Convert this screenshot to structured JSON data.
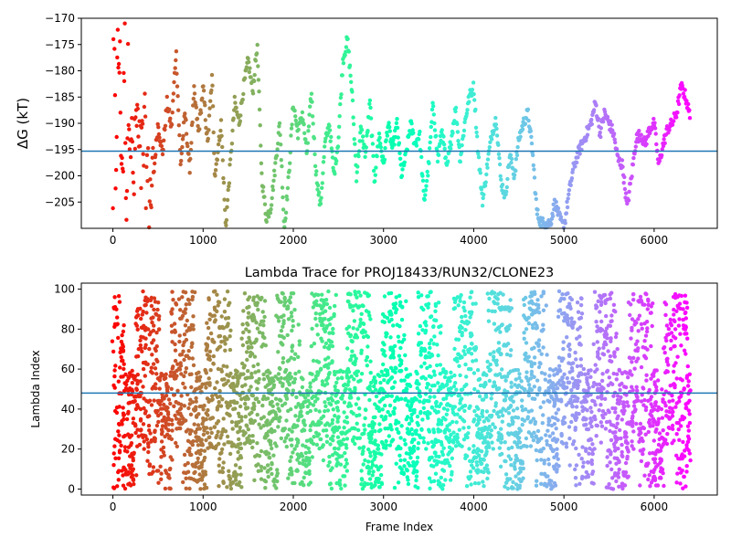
{
  "chart_data": [
    {
      "type": "scatter",
      "title": "",
      "xlabel": "",
      "ylabel": "ΔG (kT)",
      "xlim": [
        -350,
        6700
      ],
      "ylim": [
        -210,
        -170
      ],
      "xticks": [
        0,
        1000,
        2000,
        3000,
        4000,
        5000,
        6000
      ],
      "yticks": [
        -205,
        -200,
        -195,
        -190,
        -185,
        -180,
        -175,
        -170
      ],
      "hline": -195.3,
      "hline_color": "#1f77b4",
      "colormap": "rainbow",
      "x_range": [
        0,
        6400
      ],
      "anchors": [
        [
          0,
          -203
        ],
        [
          10,
          -170
        ],
        [
          30,
          -200
        ],
        [
          50,
          -180
        ],
        [
          70,
          -176
        ],
        [
          90,
          -191
        ],
        [
          110,
          -200
        ],
        [
          130,
          -174
        ],
        [
          150,
          -207
        ],
        [
          170,
          -180
        ],
        [
          200,
          -192
        ],
        [
          230,
          -202
        ],
        [
          260,
          -188
        ],
        [
          300,
          -198
        ],
        [
          350,
          -193
        ],
        [
          400,
          -205
        ],
        [
          450,
          -200
        ],
        [
          500,
          -190
        ],
        [
          550,
          -196
        ],
        [
          600,
          -186
        ],
        [
          650,
          -191
        ],
        [
          700,
          -176
        ],
        [
          750,
          -198
        ],
        [
          800,
          -188
        ],
        [
          850,
          -199
        ],
        [
          900,
          -184
        ],
        [
          950,
          -192
        ],
        [
          1000,
          -183
        ],
        [
          1050,
          -194
        ],
        [
          1100,
          -181
        ],
        [
          1130,
          -200
        ],
        [
          1200,
          -190
        ],
        [
          1250,
          -210
        ],
        [
          1300,
          -198
        ],
        [
          1350,
          -186
        ],
        [
          1400,
          -190
        ],
        [
          1450,
          -183
        ],
        [
          1500,
          -178
        ],
        [
          1550,
          -184
        ],
        [
          1600,
          -175
        ],
        [
          1650,
          -200
        ],
        [
          1700,
          -208
        ],
        [
          1750,
          -206
        ],
        [
          1800,
          -198
        ],
        [
          1850,
          -190
        ],
        [
          1900,
          -210
        ],
        [
          1950,
          -200
        ],
        [
          2000,
          -186
        ],
        [
          2050,
          -192
        ],
        [
          2100,
          -188
        ],
        [
          2150,
          -196
        ],
        [
          2200,
          -184
        ],
        [
          2250,
          -199
        ],
        [
          2300,
          -206
        ],
        [
          2350,
          -194
        ],
        [
          2400,
          -190
        ],
        [
          2450,
          -200
        ],
        [
          2500,
          -193
        ],
        [
          2550,
          -178
        ],
        [
          2600,
          -174
        ],
        [
          2650,
          -184
        ],
        [
          2700,
          -200
        ],
        [
          2750,
          -191
        ],
        [
          2800,
          -196
        ],
        [
          2850,
          -186
        ],
        [
          2900,
          -201
        ],
        [
          2950,
          -192
        ],
        [
          3000,
          -198
        ],
        [
          3050,
          -190
        ],
        [
          3100,
          -195
        ],
        [
          3150,
          -190
        ],
        [
          3200,
          -200
        ],
        [
          3250,
          -196
        ],
        [
          3300,
          -190
        ],
        [
          3350,
          -194
        ],
        [
          3400,
          -192
        ],
        [
          3450,
          -205
        ],
        [
          3500,
          -198
        ],
        [
          3550,
          -186
        ],
        [
          3600,
          -197
        ],
        [
          3650,
          -191
        ],
        [
          3700,
          -199
        ],
        [
          3750,
          -193
        ],
        [
          3800,
          -187
        ],
        [
          3850,
          -197
        ],
        [
          3900,
          -190
        ],
        [
          3950,
          -185
        ],
        [
          4000,
          -183
        ],
        [
          4050,
          -196
        ],
        [
          4100,
          -205
        ],
        [
          4150,
          -198
        ],
        [
          4200,
          -192
        ],
        [
          4250,
          -189
        ],
        [
          4300,
          -201
        ],
        [
          4350,
          -204
        ],
        [
          4400,
          -196
        ],
        [
          4450,
          -200
        ],
        [
          4500,
          -193
        ],
        [
          4550,
          -190
        ],
        [
          4600,
          -188
        ],
        [
          4650,
          -195
        ],
        [
          4700,
          -207
        ],
        [
          4750,
          -209
        ],
        [
          4800,
          -209
        ],
        [
          4850,
          -209
        ],
        [
          4900,
          -205
        ],
        [
          4950,
          -208
        ],
        [
          5000,
          -210
        ],
        [
          5050,
          -204
        ],
        [
          5100,
          -199
        ],
        [
          5150,
          -196
        ],
        [
          5200,
          -194
        ],
        [
          5250,
          -192
        ],
        [
          5300,
          -190
        ],
        [
          5350,
          -186
        ],
        [
          5400,
          -192
        ],
        [
          5450,
          -188
        ],
        [
          5500,
          -190
        ],
        [
          5550,
          -192
        ],
        [
          5600,
          -197
        ],
        [
          5650,
          -198
        ],
        [
          5700,
          -206
        ],
        [
          5750,
          -200
        ],
        [
          5800,
          -193
        ],
        [
          5850,
          -192
        ],
        [
          5900,
          -194
        ],
        [
          5950,
          -191
        ],
        [
          6000,
          -190
        ],
        [
          6050,
          -198
        ],
        [
          6100,
          -194
        ],
        [
          6150,
          -191
        ],
        [
          6200,
          -190
        ],
        [
          6250,
          -188
        ],
        [
          6300,
          -183
        ],
        [
          6350,
          -185
        ],
        [
          6400,
          -189
        ]
      ]
    },
    {
      "type": "scatter",
      "title": "Lambda Trace for PROJ18433/RUN32/CLONE23",
      "xlabel": "Frame Index",
      "ylabel": "Lambda Index",
      "xlim": [
        -350,
        6700
      ],
      "ylim": [
        -3,
        103
      ],
      "xticks": [
        0,
        1000,
        2000,
        3000,
        4000,
        5000,
        6000
      ],
      "yticks": [
        0,
        20,
        40,
        60,
        80,
        100
      ],
      "hline": 48,
      "hline_color": "#1f77b4",
      "colormap": "rainbow",
      "x_range": [
        0,
        6400
      ],
      "y_range": [
        0,
        99
      ]
    }
  ]
}
